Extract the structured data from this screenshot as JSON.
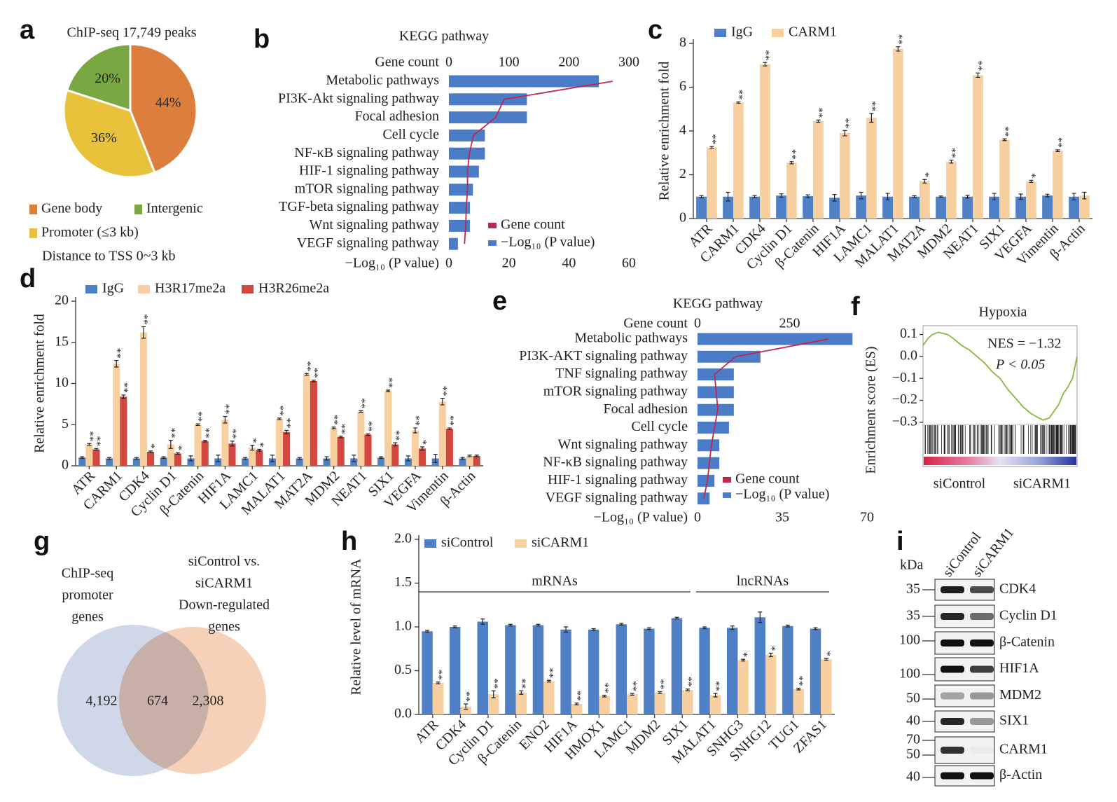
{
  "chart_data": [
    {
      "type": "pie",
      "panel": "a",
      "title": "ChIP-seq 17,749 peaks",
      "categories": [
        "Gene body",
        "Promoter (≤3 kb)",
        "Intergenic"
      ],
      "values": [
        44,
        36,
        20
      ],
      "value_labels": [
        "44%",
        "36%",
        "20%"
      ],
      "colors": [
        "#dc7f3c",
        "#e9c23c",
        "#79a843"
      ],
      "annotation": "Distance to TSS 0~3 kb"
    },
    {
      "type": "kegg",
      "panel": "b",
      "title": "KEGG pathway",
      "categories": [
        "Metabolic pathways",
        "PI3K-Akt signaling pathway",
        "Focal adhesion",
        "Cell cycle",
        "NF-κB signaling pathway",
        "HIF-1 signaling pathway",
        "mTOR signaling pathway",
        "TGF-beta signaling pathway",
        "Wnt signaling pathway",
        "VEGF signaling pathway"
      ],
      "highlight_index": 5,
      "highlight_color": "#c0282e",
      "series": [
        {
          "name": "Gene count",
          "color": "#c0284b",
          "mark": "line",
          "axis": "x2",
          "values": [
            273,
            92,
            78,
            41,
            34,
            31,
            31,
            29,
            28,
            26
          ]
        },
        {
          "name": "−Log₁₀ (P value)",
          "color": "#4a7cc7",
          "mark": "bar",
          "axis": "x",
          "values": [
            50,
            26,
            26,
            12,
            12,
            10,
            8,
            7,
            7,
            3
          ]
        }
      ],
      "x2label": "Gene count",
      "x2lim": [
        0,
        300
      ],
      "x2ticks": [
        0,
        100,
        200,
        300
      ],
      "xlabel": "−Log₁₀ (P value)",
      "xlim": [
        0,
        60
      ],
      "xticks": [
        0,
        20,
        40,
        60
      ]
    },
    {
      "type": "grouped_bar",
      "panel": "c",
      "ylabel": "Relative enrichment fold",
      "categories": [
        "ATR",
        "CARM1",
        "CDK4",
        "Cyclin D1",
        "β-Catenin",
        "HIF1A",
        "LAMC1",
        "MALAT1",
        "MAT2A",
        "MDM2",
        "NEAT1",
        "SIX1",
        "VEGFA",
        "Vimentin",
        "β-Actin"
      ],
      "ylim": [
        0,
        8
      ],
      "yticks": [
        0,
        2,
        4,
        6,
        8
      ],
      "series": [
        {
          "name": "IgG",
          "color": "#4f7fc4",
          "values": [
            1,
            1,
            1,
            1.05,
            1.02,
            0.95,
            1.05,
            1,
            1,
            1,
            1,
            1,
            1,
            1.05,
            1
          ],
          "errors": [
            0.05,
            0.2,
            0.05,
            0.08,
            0.06,
            0.15,
            0.15,
            0.15,
            0.04,
            0.03,
            0.06,
            0.15,
            0.12,
            0.06,
            0.15
          ],
          "stars": [
            null,
            null,
            null,
            null,
            null,
            null,
            null,
            null,
            null,
            null,
            null,
            null,
            null,
            null,
            null
          ]
        },
        {
          "name": "CARM1",
          "color": "#f8cf9e",
          "values": [
            3.25,
            5.3,
            7.05,
            2.55,
            4.45,
            3.9,
            4.6,
            7.75,
            1.7,
            2.6,
            6.55,
            3.6,
            1.7,
            3.1,
            1.05
          ],
          "errors": [
            0.04,
            0.03,
            0.08,
            0.05,
            0.05,
            0.12,
            0.2,
            0.1,
            0.08,
            0.07,
            0.1,
            0.04,
            0.05,
            0.04,
            0.15
          ],
          "stars": [
            "**",
            "**",
            "**",
            "**",
            "**",
            "**",
            "**",
            "**",
            "*",
            "**",
            "**",
            "**",
            "*",
            "**",
            null
          ]
        }
      ]
    },
    {
      "type": "grouped_bar",
      "panel": "d",
      "ylabel": "Relative enrichment fold",
      "categories": [
        "ATR",
        "CARM1",
        "CDK4",
        "Cyclin D1",
        "β-Catenin",
        "HIF1A",
        "LAMC1",
        "MALAT1",
        "MAT2A",
        "MDM2",
        "NEAT1",
        "SIX1",
        "VEGFA",
        "Vimentin",
        "β-Actin"
      ],
      "ylim": [
        0,
        20
      ],
      "yticks": [
        0,
        5,
        10,
        15,
        20
      ],
      "series": [
        {
          "name": "IgG",
          "color": "#4f7fc4",
          "values": [
            1,
            0.9,
            0.9,
            1,
            0.9,
            0.9,
            0.9,
            0.9,
            0.9,
            0.9,
            0.9,
            1,
            0.9,
            0.9,
            0.9
          ],
          "errors": [
            0.1,
            0.1,
            0.1,
            0.1,
            0.3,
            0.4,
            0.1,
            0.4,
            0.1,
            0.2,
            0.4,
            0.1,
            0.3,
            0.5,
            0.1
          ],
          "stars": [
            null,
            null,
            null,
            null,
            null,
            null,
            null,
            null,
            null,
            null,
            null,
            null,
            null,
            null,
            null
          ]
        },
        {
          "name": "H3R17me2a",
          "color": "#f8cf9e",
          "values": [
            2.6,
            12.4,
            16.2,
            2.6,
            5,
            5.6,
            2.2,
            5.7,
            11.1,
            4.6,
            6.6,
            9.1,
            4.3,
            7.8,
            1.2
          ],
          "errors": [
            0.1,
            0.4,
            0.7,
            0.5,
            0.1,
            0.4,
            0.3,
            0.1,
            0.1,
            0.1,
            0.1,
            0.1,
            0.3,
            0.4,
            0.1
          ],
          "stars": [
            "**",
            "**",
            "**",
            "**",
            "**",
            "**",
            "*",
            "**",
            "**",
            "**",
            "**",
            "**",
            "**",
            "**",
            null
          ]
        },
        {
          "name": "H3R26me2a",
          "color": "#d2473f",
          "values": [
            2,
            8.4,
            1.7,
            1.5,
            3,
            2.7,
            1.9,
            4.1,
            10.3,
            3.5,
            3.8,
            2.6,
            2.1,
            4.5,
            1.2
          ],
          "errors": [
            0.1,
            0.2,
            0.1,
            0.1,
            0.1,
            0.3,
            0.1,
            0.2,
            0.1,
            0.1,
            0.1,
            0.2,
            0.2,
            0.1,
            0.1
          ],
          "stars": [
            "**",
            "**",
            "*",
            "*",
            "**",
            "**",
            "*",
            "**",
            "**",
            "**",
            "**",
            "**",
            "*",
            "**",
            null
          ]
        }
      ]
    },
    {
      "type": "kegg",
      "panel": "e",
      "title": "KEGG pathway",
      "categories": [
        "Metabolic pathways",
        "PI3K-AKT signaling pathway",
        "TNF signaling pathway",
        "mTOR signaling pathway",
        "Focal adhesion",
        "Cell cycle",
        "Wnt signaling pathway",
        "NF-κB signaling pathway",
        "HIF-1 signaling pathway",
        "VEGF signaling pathway"
      ],
      "highlight_index": 8,
      "highlight_color": "#c0282e",
      "series": [
        {
          "name": "Gene count",
          "color": "#c0284b",
          "mark": "line",
          "axis": "x2",
          "values": [
            355,
            103,
            46,
            51,
            55,
            46,
            38,
            32,
            27,
            17
          ]
        },
        {
          "name": "−Log₁₀ (P value)",
          "color": "#4a7cc7",
          "mark": "bar",
          "axis": "x",
          "values": [
            64,
            26,
            15,
            15,
            15,
            13,
            9,
            9,
            7,
            5
          ]
        }
      ],
      "x2label": "Gene count",
      "x2lim": [
        0,
        460
      ],
      "x2ticks": [
        0,
        250
      ],
      "xlabel": "−Log₁₀ (P value)",
      "xlim": [
        0,
        70
      ],
      "xticks": [
        0,
        35,
        70
      ]
    },
    {
      "type": "gsea",
      "panel": "f",
      "title": "Hypoxia",
      "ylabel": "Enrichment score (ES)",
      "x": [
        0,
        3,
        6,
        10,
        13,
        16,
        20,
        25,
        30,
        35,
        40,
        45,
        50,
        55,
        60,
        65,
        70,
        75,
        78,
        82,
        85,
        88,
        91,
        94,
        97,
        100
      ],
      "values": [
        0.05,
        0.08,
        0.1,
        0.11,
        0.105,
        0.1,
        0.08,
        0.05,
        0.03,
        0,
        -0.03,
        -0.07,
        -0.1,
        -0.15,
        -0.19,
        -0.23,
        -0.26,
        -0.28,
        -0.29,
        -0.28,
        -0.25,
        -0.22,
        -0.17,
        -0.14,
        -0.1,
        0
      ],
      "xlim": [
        0,
        100
      ],
      "ylim": [
        -0.31,
        0.14
      ],
      "yticks": [
        0.1,
        {
          "value": 0,
          "label": "0.0"
        },
        {
          "value": -0.1,
          "label": "−0.1"
        },
        {
          "value": -0.2,
          "label": "−0.2"
        },
        {
          "value": -0.3,
          "label": "−0.3"
        }
      ],
      "color": "#8ab83a",
      "annotations": [
        "NES = −1.32",
        "P < 0.05"
      ],
      "phenotypes": [
        "siControl",
        "siCARM1"
      ]
    },
    {
      "type": "venn",
      "panel": "g",
      "sets": [
        {
          "label": [
            "ChIP-seq",
            "promoter",
            "genes"
          ],
          "color": "#c3cde3"
        },
        {
          "label": [
            "siControl vs.",
            "siCARM1",
            "Down-regulated",
            "genes"
          ],
          "color": "#f3c6a6"
        }
      ],
      "values": [
        4192,
        674,
        2308
      ],
      "value_labels": [
        "4,192",
        "674",
        "2,308"
      ],
      "overlap_color": "#c0282e"
    },
    {
      "type": "grouped_bar",
      "panel": "h",
      "ylabel": "Relative level of mRNA",
      "categories": [
        "ATR",
        "CDK4",
        "Cyclin D1",
        "β-Catenin",
        "ENO2",
        "HIF1A",
        "HMOX1",
        "LAMC1",
        "MDM2",
        "SIX1",
        "MALAT1",
        "SNHG3",
        "SNHG12",
        "TUG1",
        "ZFAS1"
      ],
      "ylim": [
        0,
        2
      ],
      "yticks": [
        {
          "value": 0,
          "label": "0.0"
        },
        0.5,
        {
          "value": 1,
          "label": "1.0"
        },
        1.5,
        {
          "value": 2,
          "label": "2.0"
        }
      ],
      "groups": [
        {
          "label": "mRNAs",
          "from": 0,
          "to": 9
        },
        {
          "label": "lncRNAs",
          "from": 10,
          "to": 14
        }
      ],
      "series": [
        {
          "name": "siControl",
          "color": "#4f7fc4",
          "values": [
            0.95,
            1,
            1.06,
            1.02,
            1.02,
            0.97,
            0.97,
            1.03,
            0.98,
            1.1,
            0.99,
            0.99,
            1.11,
            1.01,
            0.98
          ],
          "errors": [
            0.01,
            0.01,
            0.03,
            0.01,
            0.01,
            0.03,
            0.01,
            0.01,
            0.01,
            0.01,
            0.01,
            0.02,
            0.06,
            0.01,
            0.01
          ],
          "stars": [
            null,
            null,
            null,
            null,
            null,
            null,
            null,
            null,
            null,
            null,
            null,
            null,
            null,
            null,
            null
          ]
        },
        {
          "name": "siCARM1",
          "color": "#f8cf9e",
          "values": [
            0.36,
            0.09,
            0.23,
            0.25,
            0.38,
            0.12,
            0.21,
            0.23,
            0.25,
            0.28,
            0.22,
            0.62,
            0.68,
            0.29,
            0.63
          ],
          "errors": [
            0.01,
            0.03,
            0.04,
            0.02,
            0.01,
            0.01,
            0.01,
            0.01,
            0.01,
            0.01,
            0.02,
            0.01,
            0.02,
            0.01,
            0.01
          ],
          "stars": [
            "**",
            "**",
            "**",
            "**",
            "**",
            "**",
            "**",
            "**",
            "**",
            "**",
            "**",
            "*",
            "*",
            "**",
            "*"
          ]
        }
      ]
    },
    {
      "type": "blot",
      "panel": "i",
      "columns": [
        "siControl",
        "siCARM1"
      ],
      "unit": "kDa",
      "rows": [
        {
          "label": "CDK4",
          "markers": [
            35
          ]
        },
        {
          "label": "Cyclin  D1",
          "markers": [
            35
          ]
        },
        {
          "label": "β-Catenin",
          "markers": [
            100
          ]
        },
        {
          "label": "HIF1A",
          "markers": [
            100
          ]
        },
        {
          "label": "MDM2",
          "markers": [
            50
          ]
        },
        {
          "label": "SIX1",
          "markers": [
            40
          ]
        },
        {
          "label": "CARM1",
          "markers": [
            70,
            50
          ]
        },
        {
          "label": "β-Actin",
          "markers": [
            40
          ]
        }
      ]
    }
  ]
}
